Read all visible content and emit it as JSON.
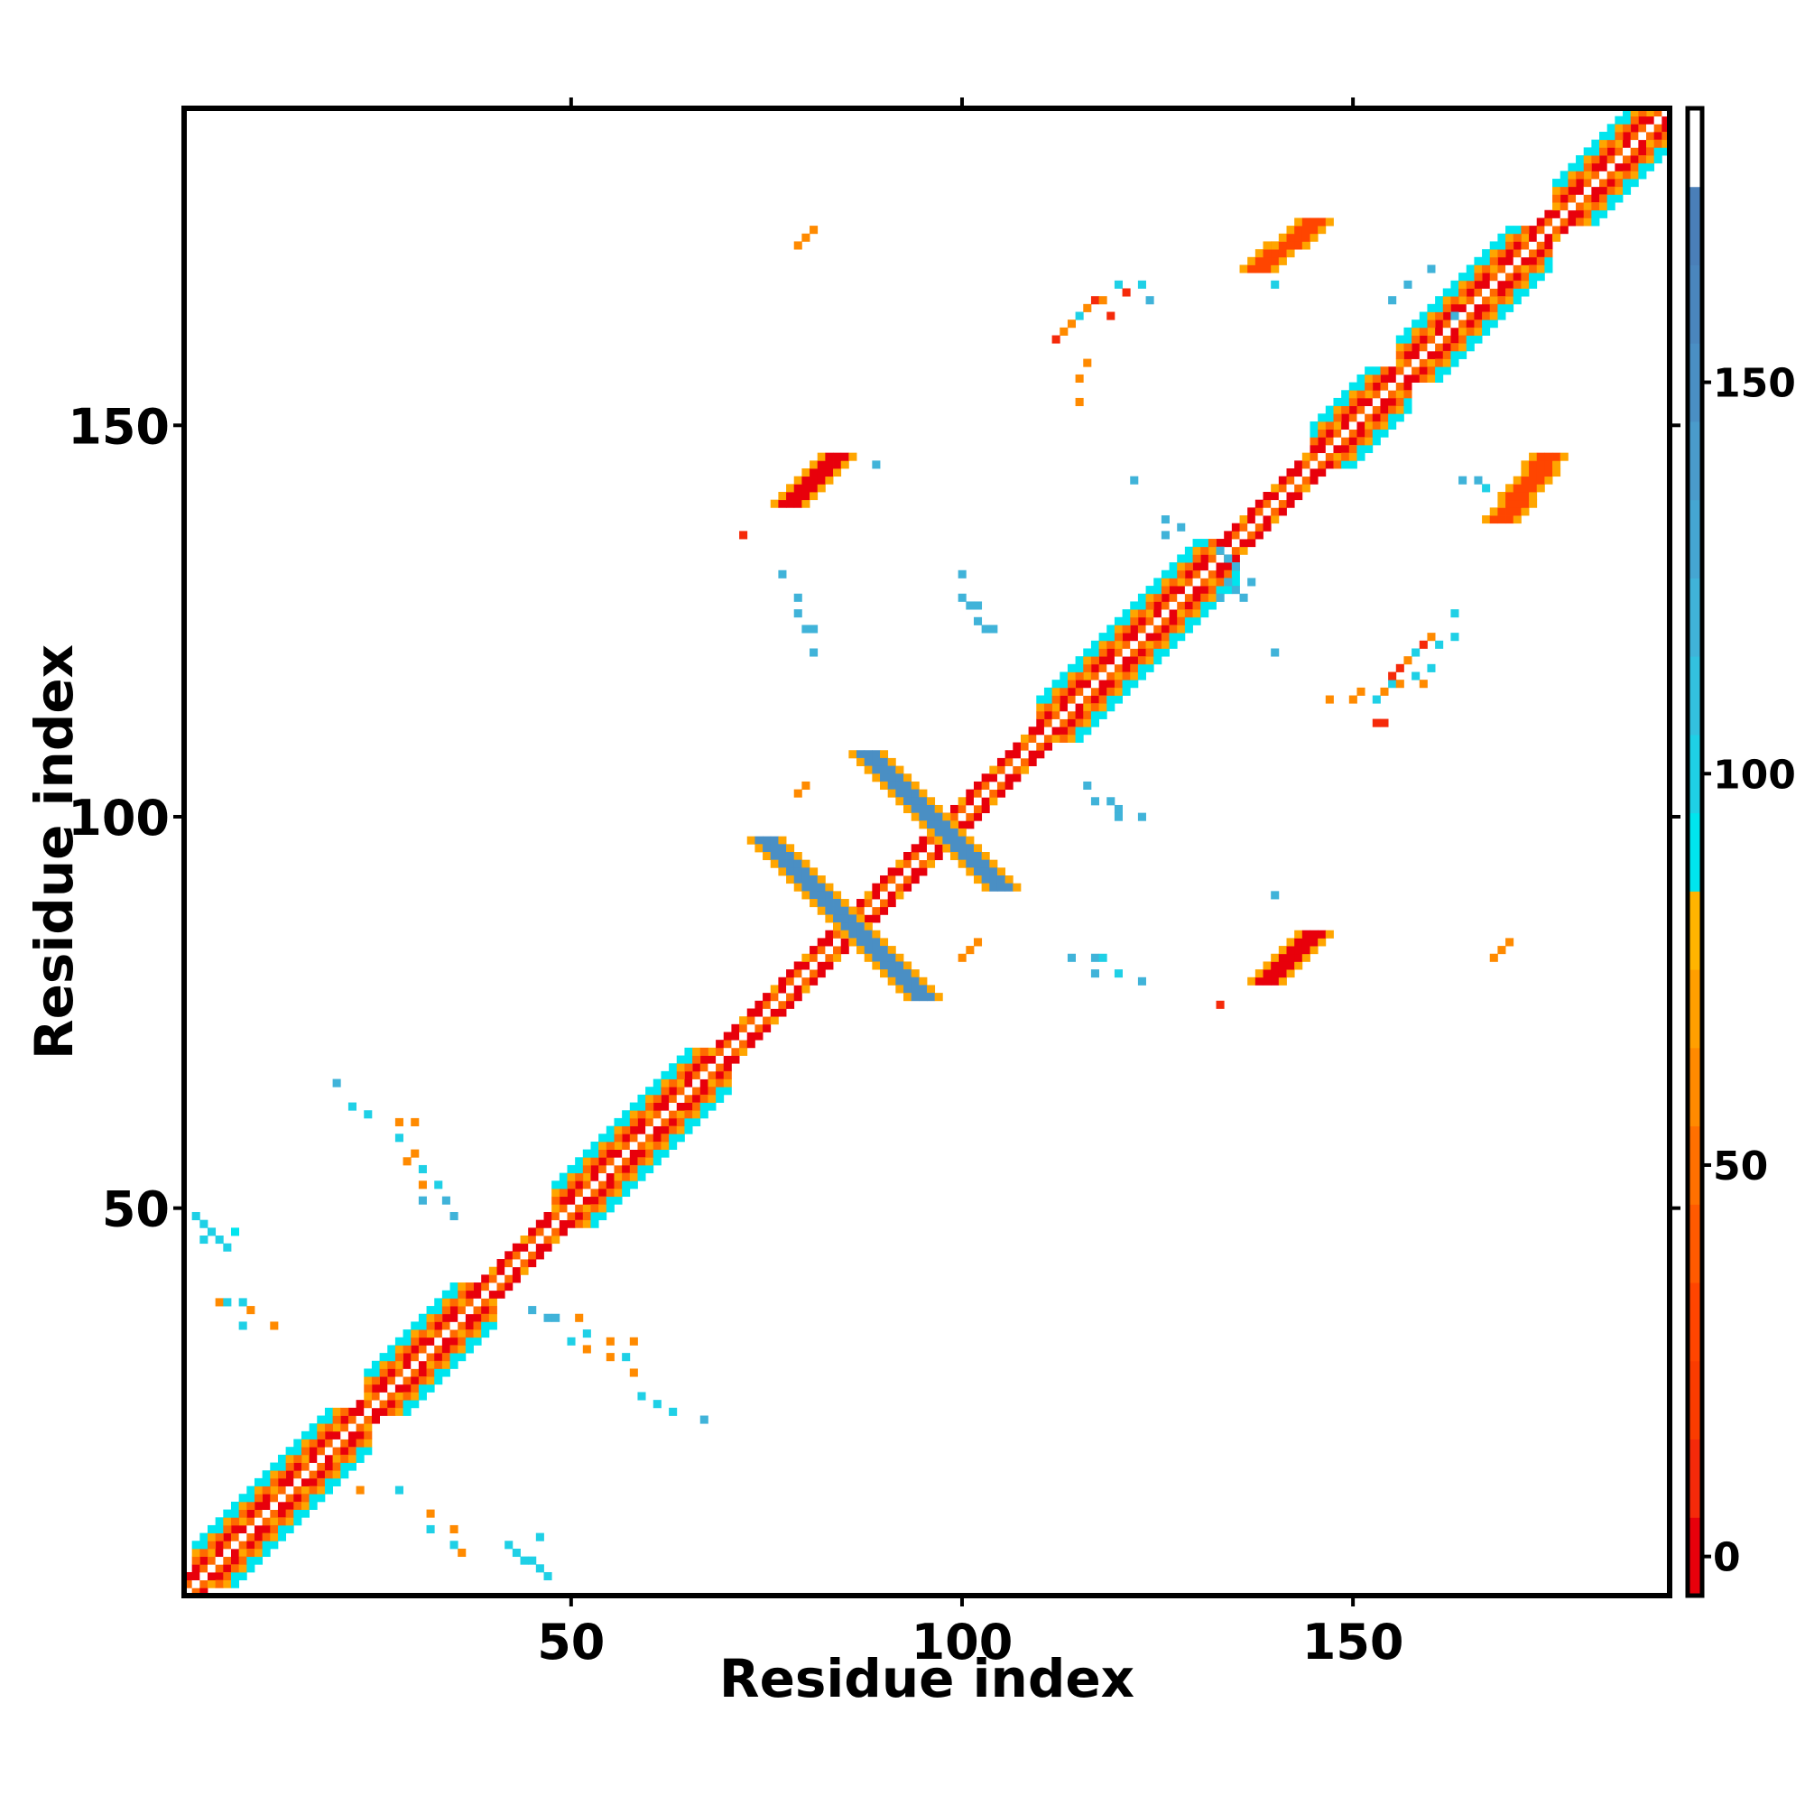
{
  "chart_data": {
    "type": "heatmap",
    "title": "",
    "xlabel": "Residue index",
    "ylabel": "Residue index",
    "xlim": [
      1,
      190
    ],
    "ylim": [
      1,
      190
    ],
    "x_ticks": [
      50,
      100,
      150
    ],
    "y_ticks": [
      50,
      100,
      150
    ],
    "x_tick_labels": [
      "50",
      "100",
      "150"
    ],
    "y_tick_labels": [
      "50",
      "100",
      "150"
    ],
    "colorbar": {
      "range": [
        -5,
        185
      ],
      "ticks": [
        0,
        50,
        100,
        150
      ],
      "tick_labels": [
        "0",
        "50",
        "100",
        "150"
      ],
      "bands": [
        {
          "from": -5,
          "to": 5,
          "color": "#e8000b"
        },
        {
          "from": 5,
          "to": 15,
          "color": "#f52a0a"
        },
        {
          "from": 15,
          "to": 25,
          "color": "#fa3c00"
        },
        {
          "from": 25,
          "to": 35,
          "color": "#ff4500"
        },
        {
          "from": 35,
          "to": 45,
          "color": "#ff5a00"
        },
        {
          "from": 45,
          "to": 55,
          "color": "#ff7000"
        },
        {
          "from": 55,
          "to": 65,
          "color": "#ff8a00"
        },
        {
          "from": 65,
          "to": 75,
          "color": "#ff9f00"
        },
        {
          "from": 75,
          "to": 85,
          "color": "#ffb400"
        },
        {
          "from": 85,
          "to": 95,
          "color": "#00e5ee"
        },
        {
          "from": 95,
          "to": 105,
          "color": "#1fd0e6"
        },
        {
          "from": 105,
          "to": 115,
          "color": "#33c1df"
        },
        {
          "from": 115,
          "to": 125,
          "color": "#40b3d9"
        },
        {
          "from": 125,
          "to": 135,
          "color": "#45a6d2"
        },
        {
          "from": 135,
          "to": 145,
          "color": "#4a9bcb"
        },
        {
          "from": 145,
          "to": 155,
          "color": "#4a8fc4"
        },
        {
          "from": 155,
          "to": 165,
          "color": "#4a86bd"
        },
        {
          "from": 165,
          "to": 175,
          "color": "#4a7fb8"
        },
        {
          "from": 175,
          "to": 185,
          "color": "#ffffff"
        }
      ]
    },
    "palette": {
      "red": "#e8000b",
      "orange": "#ff6a00",
      "amber": "#ffa500",
      "cyan": "#00e5ee",
      "steel": "#4a8fc4",
      "white": "#ffffff"
    },
    "diagonal_band": {
      "from": 1,
      "to": 190,
      "half_width": 2
    },
    "helix_segments": [
      {
        "from": 2,
        "to": 22
      },
      {
        "from": 24,
        "to": 38
      },
      {
        "from": 48,
        "to": 68
      },
      {
        "from": 110,
        "to": 133
      },
      {
        "from": 145,
        "to": 155
      },
      {
        "from": 156,
        "to": 173
      },
      {
        "from": 176,
        "to": 190
      }
    ],
    "beta_contacts": [
      {
        "x1": 78,
        "y1": 140,
        "x2": 84,
        "y2": 146,
        "width": 2,
        "color": "#e8000b"
      },
      {
        "x1": 139,
        "y1": 79,
        "x2": 145,
        "y2": 85,
        "width": 2,
        "color": "#e8000b"
      },
      {
        "x1": 138,
        "y1": 170,
        "x2": 145,
        "y2": 176,
        "width": 2,
        "color": "#ff4500"
      },
      {
        "x1": 169,
        "y1": 138,
        "x2": 175,
        "y2": 146,
        "width": 2,
        "color": "#ff4500"
      }
    ],
    "cross_arms": [
      {
        "x1": 75,
        "y1": 97,
        "x2": 95,
        "y2": 77,
        "width": 2,
        "color": "#4a8fc4"
      },
      {
        "x1": 88,
        "y1": 108,
        "x2": 105,
        "y2": 91,
        "width": 2,
        "color": "#4a8fc4"
      }
    ],
    "scatter_contacts": [
      {
        "x": 2,
        "y": 49,
        "v": 95
      },
      {
        "x": 3,
        "y": 48,
        "v": 95
      },
      {
        "x": 4,
        "y": 47,
        "v": 95
      },
      {
        "x": 5,
        "y": 46,
        "v": 95
      },
      {
        "x": 3,
        "y": 46,
        "v": 100
      },
      {
        "x": 6,
        "y": 45,
        "v": 95
      },
      {
        "x": 7,
        "y": 47,
        "v": 90
      },
      {
        "x": 5,
        "y": 38,
        "v": 60
      },
      {
        "x": 6,
        "y": 38,
        "v": 100
      },
      {
        "x": 8,
        "y": 38,
        "v": 95
      },
      {
        "x": 9,
        "y": 37,
        "v": 60
      },
      {
        "x": 8,
        "y": 35,
        "v": 95
      },
      {
        "x": 12,
        "y": 35,
        "v": 60
      },
      {
        "x": 20,
        "y": 66,
        "v": 120
      },
      {
        "x": 22,
        "y": 63,
        "v": 95
      },
      {
        "x": 24,
        "y": 62,
        "v": 95
      },
      {
        "x": 28,
        "y": 61,
        "v": 60
      },
      {
        "x": 30,
        "y": 61,
        "v": 60
      },
      {
        "x": 28,
        "y": 59,
        "v": 95
      },
      {
        "x": 30,
        "y": 57,
        "v": 60
      },
      {
        "x": 29,
        "y": 56,
        "v": 60
      },
      {
        "x": 31,
        "y": 55,
        "v": 95
      },
      {
        "x": 31,
        "y": 53,
        "v": 60
      },
      {
        "x": 33,
        "y": 53,
        "v": 100
      },
      {
        "x": 31,
        "y": 51,
        "v": 120
      },
      {
        "x": 34,
        "y": 51,
        "v": 120
      },
      {
        "x": 35,
        "y": 49,
        "v": 120
      },
      {
        "x": 23,
        "y": 14,
        "v": 60
      },
      {
        "x": 28,
        "y": 14,
        "v": 95
      },
      {
        "x": 32,
        "y": 11,
        "v": 60
      },
      {
        "x": 32,
        "y": 9,
        "v": 95
      },
      {
        "x": 35,
        "y": 9,
        "v": 60
      },
      {
        "x": 35,
        "y": 7,
        "v": 100
      },
      {
        "x": 36,
        "y": 6,
        "v": 60
      },
      {
        "x": 42,
        "y": 7,
        "v": 95
      },
      {
        "x": 43,
        "y": 6,
        "v": 95
      },
      {
        "x": 44,
        "y": 5,
        "v": 95
      },
      {
        "x": 45,
        "y": 5,
        "v": 100
      },
      {
        "x": 46,
        "y": 4,
        "v": 95
      },
      {
        "x": 47,
        "y": 3,
        "v": 95
      },
      {
        "x": 46,
        "y": 8,
        "v": 95
      },
      {
        "x": 45,
        "y": 37,
        "v": 120
      },
      {
        "x": 47,
        "y": 36,
        "v": 120
      },
      {
        "x": 48,
        "y": 36,
        "v": 120
      },
      {
        "x": 51,
        "y": 36,
        "v": 60
      },
      {
        "x": 50,
        "y": 33,
        "v": 95
      },
      {
        "x": 52,
        "y": 34,
        "v": 95
      },
      {
        "x": 52,
        "y": 32,
        "v": 60
      },
      {
        "x": 55,
        "y": 33,
        "v": 60
      },
      {
        "x": 55,
        "y": 31,
        "v": 60
      },
      {
        "x": 58,
        "y": 33,
        "v": 60
      },
      {
        "x": 57,
        "y": 31,
        "v": 95
      },
      {
        "x": 58,
        "y": 29,
        "v": 60
      },
      {
        "x": 59,
        "y": 26,
        "v": 95
      },
      {
        "x": 61,
        "y": 25,
        "v": 95
      },
      {
        "x": 63,
        "y": 24,
        "v": 95
      },
      {
        "x": 67,
        "y": 23,
        "v": 120
      },
      {
        "x": 79,
        "y": 173,
        "v": 60
      },
      {
        "x": 80,
        "y": 174,
        "v": 60
      },
      {
        "x": 81,
        "y": 175,
        "v": 60
      },
      {
        "x": 72,
        "y": 136,
        "v": 10
      },
      {
        "x": 77,
        "y": 131,
        "v": 120
      },
      {
        "x": 79,
        "y": 128,
        "v": 120
      },
      {
        "x": 79,
        "y": 126,
        "v": 120
      },
      {
        "x": 80,
        "y": 124,
        "v": 120
      },
      {
        "x": 81,
        "y": 124,
        "v": 120
      },
      {
        "x": 81,
        "y": 121,
        "v": 120
      },
      {
        "x": 79,
        "y": 103,
        "v": 60
      },
      {
        "x": 80,
        "y": 104,
        "v": 60
      },
      {
        "x": 89,
        "y": 145,
        "v": 120
      },
      {
        "x": 100,
        "y": 131,
        "v": 120
      },
      {
        "x": 100,
        "y": 128,
        "v": 120
      },
      {
        "x": 101,
        "y": 127,
        "v": 120
      },
      {
        "x": 102,
        "y": 127,
        "v": 120
      },
      {
        "x": 102,
        "y": 125,
        "v": 120
      },
      {
        "x": 103,
        "y": 124,
        "v": 120
      },
      {
        "x": 104,
        "y": 124,
        "v": 120
      },
      {
        "x": 100,
        "y": 82,
        "v": 60
      },
      {
        "x": 101,
        "y": 83,
        "v": 60
      },
      {
        "x": 102,
        "y": 84,
        "v": 60
      },
      {
        "x": 112,
        "y": 161,
        "v": 10
      },
      {
        "x": 113,
        "y": 162,
        "v": 60
      },
      {
        "x": 114,
        "y": 163,
        "v": 60
      },
      {
        "x": 115,
        "y": 164,
        "v": 100
      },
      {
        "x": 116,
        "y": 165,
        "v": 60
      },
      {
        "x": 117,
        "y": 166,
        "v": 10
      },
      {
        "x": 118,
        "y": 166,
        "v": 60
      },
      {
        "x": 119,
        "y": 164,
        "v": 10
      },
      {
        "x": 120,
        "y": 168,
        "v": 95
      },
      {
        "x": 121,
        "y": 167,
        "v": 10
      },
      {
        "x": 123,
        "y": 168,
        "v": 95
      },
      {
        "x": 124,
        "y": 166,
        "v": 120
      },
      {
        "x": 115,
        "y": 156,
        "v": 60
      },
      {
        "x": 115,
        "y": 153,
        "v": 60
      },
      {
        "x": 116,
        "y": 158,
        "v": 60
      },
      {
        "x": 116,
        "y": 104,
        "v": 120
      },
      {
        "x": 117,
        "y": 102,
        "v": 120
      },
      {
        "x": 119,
        "y": 102,
        "v": 120
      },
      {
        "x": 120,
        "y": 101,
        "v": 120
      },
      {
        "x": 120,
        "y": 100,
        "v": 120
      },
      {
        "x": 123,
        "y": 100,
        "v": 120
      },
      {
        "x": 114,
        "y": 82,
        "v": 120
      },
      {
        "x": 117,
        "y": 82,
        "v": 120
      },
      {
        "x": 118,
        "y": 82,
        "v": 100
      },
      {
        "x": 117,
        "y": 80,
        "v": 120
      },
      {
        "x": 120,
        "y": 80,
        "v": 95
      },
      {
        "x": 123,
        "y": 79,
        "v": 120
      },
      {
        "x": 122,
        "y": 143,
        "v": 120
      },
      {
        "x": 126,
        "y": 136,
        "v": 120
      },
      {
        "x": 126,
        "y": 138,
        "v": 120
      },
      {
        "x": 128,
        "y": 137,
        "v": 120
      },
      {
        "x": 133,
        "y": 134,
        "v": 120
      },
      {
        "x": 134,
        "y": 133,
        "v": 120
      },
      {
        "x": 135,
        "y": 132,
        "v": 120
      },
      {
        "x": 134,
        "y": 130,
        "v": 120
      },
      {
        "x": 135,
        "y": 129,
        "v": 120
      },
      {
        "x": 136,
        "y": 128,
        "v": 120
      },
      {
        "x": 137,
        "y": 130,
        "v": 120
      },
      {
        "x": 133,
        "y": 128,
        "v": 120
      },
      {
        "x": 133,
        "y": 76,
        "v": 10
      },
      {
        "x": 140,
        "y": 90,
        "v": 120
      },
      {
        "x": 140,
        "y": 121,
        "v": 120
      },
      {
        "x": 140,
        "y": 168,
        "v": 95
      },
      {
        "x": 147,
        "y": 115,
        "v": 60
      },
      {
        "x": 150,
        "y": 115,
        "v": 60
      },
      {
        "x": 151,
        "y": 116,
        "v": 60
      },
      {
        "x": 153,
        "y": 112,
        "v": 10
      },
      {
        "x": 154,
        "y": 112,
        "v": 10
      },
      {
        "x": 153,
        "y": 115,
        "v": 95
      },
      {
        "x": 154,
        "y": 116,
        "v": 60
      },
      {
        "x": 155,
        "y": 117,
        "v": 100
      },
      {
        "x": 156,
        "y": 117,
        "v": 60
      },
      {
        "x": 155,
        "y": 118,
        "v": 10
      },
      {
        "x": 156,
        "y": 119,
        "v": 10
      },
      {
        "x": 157,
        "y": 120,
        "v": 60
      },
      {
        "x": 158,
        "y": 121,
        "v": 100
      },
      {
        "x": 159,
        "y": 122,
        "v": 10
      },
      {
        "x": 160,
        "y": 123,
        "v": 60
      },
      {
        "x": 158,
        "y": 118,
        "v": 95
      },
      {
        "x": 159,
        "y": 117,
        "v": 60
      },
      {
        "x": 160,
        "y": 119,
        "v": 95
      },
      {
        "x": 161,
        "y": 122,
        "v": 95
      },
      {
        "x": 163,
        "y": 123,
        "v": 95
      },
      {
        "x": 163,
        "y": 126,
        "v": 95
      },
      {
        "x": 155,
        "y": 166,
        "v": 120
      },
      {
        "x": 157,
        "y": 168,
        "v": 120
      },
      {
        "x": 160,
        "y": 170,
        "v": 120
      },
      {
        "x": 163,
        "y": 164,
        "v": 120
      },
      {
        "x": 164,
        "y": 143,
        "v": 120
      },
      {
        "x": 166,
        "y": 143,
        "v": 120
      },
      {
        "x": 167,
        "y": 142,
        "v": 95
      },
      {
        "x": 168,
        "y": 82,
        "v": 60
      },
      {
        "x": 169,
        "y": 83,
        "v": 60
      },
      {
        "x": 170,
        "y": 84,
        "v": 60
      }
    ]
  }
}
